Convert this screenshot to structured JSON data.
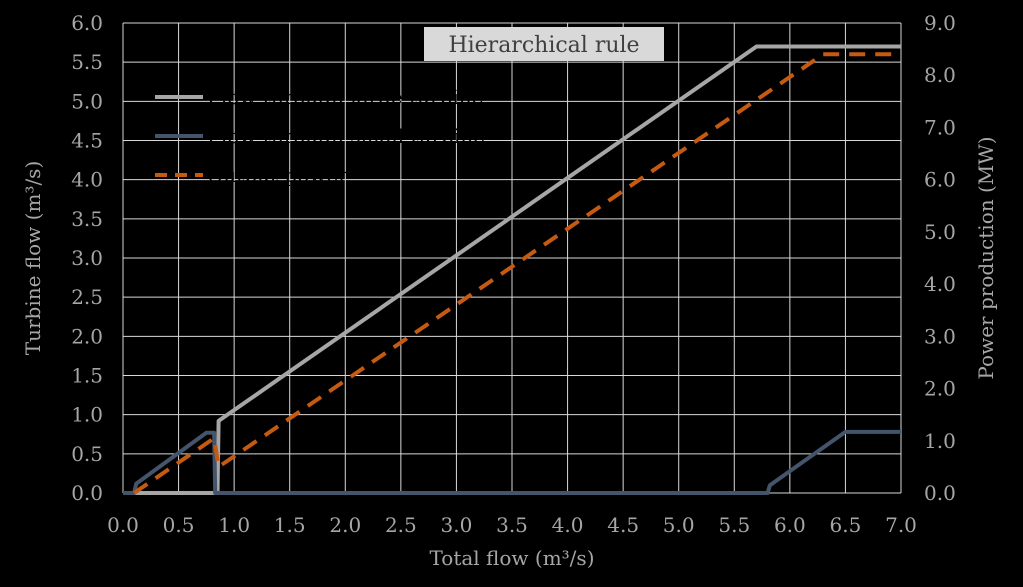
{
  "chart_data": {
    "type": "line",
    "title": "Hierarchical rule",
    "xlabel": "Total flow (m³/s)",
    "ylabel": "Turbine flow (m³/s)",
    "y2label": "Power production (MW)",
    "xlim": [
      0,
      7
    ],
    "ylim": [
      0,
      6
    ],
    "y2lim": [
      0,
      9
    ],
    "x_ticks": [
      "0.0",
      "0.5",
      "1.0",
      "1.5",
      "2.0",
      "2.5",
      "3.0",
      "3.5",
      "4.0",
      "4.5",
      "5.0",
      "5.5",
      "6.0",
      "6.5",
      "7.0"
    ],
    "y_ticks": [
      "0.0",
      "0.5",
      "1.0",
      "1.5",
      "2.0",
      "2.5",
      "3.0",
      "3.5",
      "4.0",
      "4.5",
      "5.0",
      "5.5",
      "6.0"
    ],
    "y2_ticks": [
      "0.0",
      "1.0",
      "2.0",
      "3.0",
      "4.0",
      "5.0",
      "6.0",
      "7.0",
      "8.0",
      "9.0"
    ],
    "grid": true,
    "legend_position": "top-left",
    "series": [
      {
        "name": "Flow through large turbine",
        "axis": "left",
        "color": "#a6a6a6",
        "dash": "solid",
        "points": [
          [
            0,
            0
          ],
          [
            0.85,
            0
          ],
          [
            0.86,
            0.92
          ],
          [
            5.7,
            5.7
          ],
          [
            7.0,
            5.7
          ]
        ]
      },
      {
        "name": "Flow through small turbine",
        "axis": "left",
        "color": "#44546a",
        "dash": "solid",
        "points": [
          [
            0,
            0
          ],
          [
            0.1,
            0
          ],
          [
            0.12,
            0.12
          ],
          [
            0.75,
            0.77
          ],
          [
            0.82,
            0.77
          ],
          [
            0.83,
            0
          ],
          [
            5.8,
            0
          ],
          [
            5.82,
            0.1
          ],
          [
            6.5,
            0.78
          ],
          [
            7.0,
            0.78
          ]
        ]
      },
      {
        "name": "Output power",
        "axis": "right",
        "color": "#c55a11",
        "dash": "dashed",
        "points": [
          [
            0.1,
            0
          ],
          [
            0.82,
            1.05
          ],
          [
            0.86,
            0.5
          ],
          [
            6.3,
            8.4
          ],
          [
            7.0,
            8.4
          ]
        ]
      }
    ]
  }
}
